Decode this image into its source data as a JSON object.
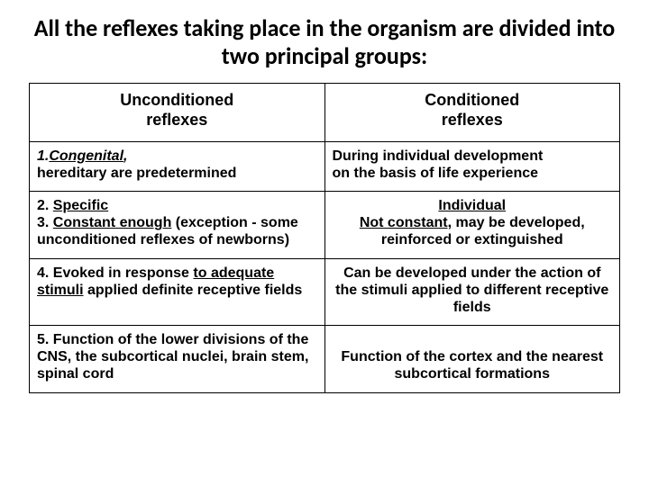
{
  "title": "All the reflexes taking place in the organism are divided into two principal groups:",
  "table": {
    "header": {
      "left_line1": "Unconditioned",
      "left_line2": "reflexes",
      "right_line1": "Conditioned",
      "right_line2": "reflexes"
    },
    "row1": {
      "left_num": "1.",
      "left_word": "Congenital",
      "left_comma": ",",
      "left_rest": "hereditary are predetermined",
      "right_l1": "During individual development",
      "right_l2": "on  the basis  of  life experience"
    },
    "row2": {
      "left_l1a": "2.   ",
      "left_l1b": "Specific",
      "left_l2a": "3.   ",
      "left_l2b": "Constant enough",
      "left_l2c": " (exception - some unconditioned reflexes of newborns)",
      "right_l1": "Individual",
      "right_l2": "Not constant,",
      "right_l2b": "   may   be   developed, reinforced or   extinguished"
    },
    "row3": {
      "left_a": "4.  Evoked  in  response  ",
      "left_b": "to adequate stimuli",
      "left_c": " applied definite receptive  fields",
      "right": "Can be developed under the action of the stimuli applied to  different receptive fields"
    },
    "row4": {
      "left": "5. Function of the lower divisions of the CNS, the subcortical nuclei, brain stem, spinal cord",
      "right": "Function of the cortex and the nearest subcortical formations"
    }
  }
}
